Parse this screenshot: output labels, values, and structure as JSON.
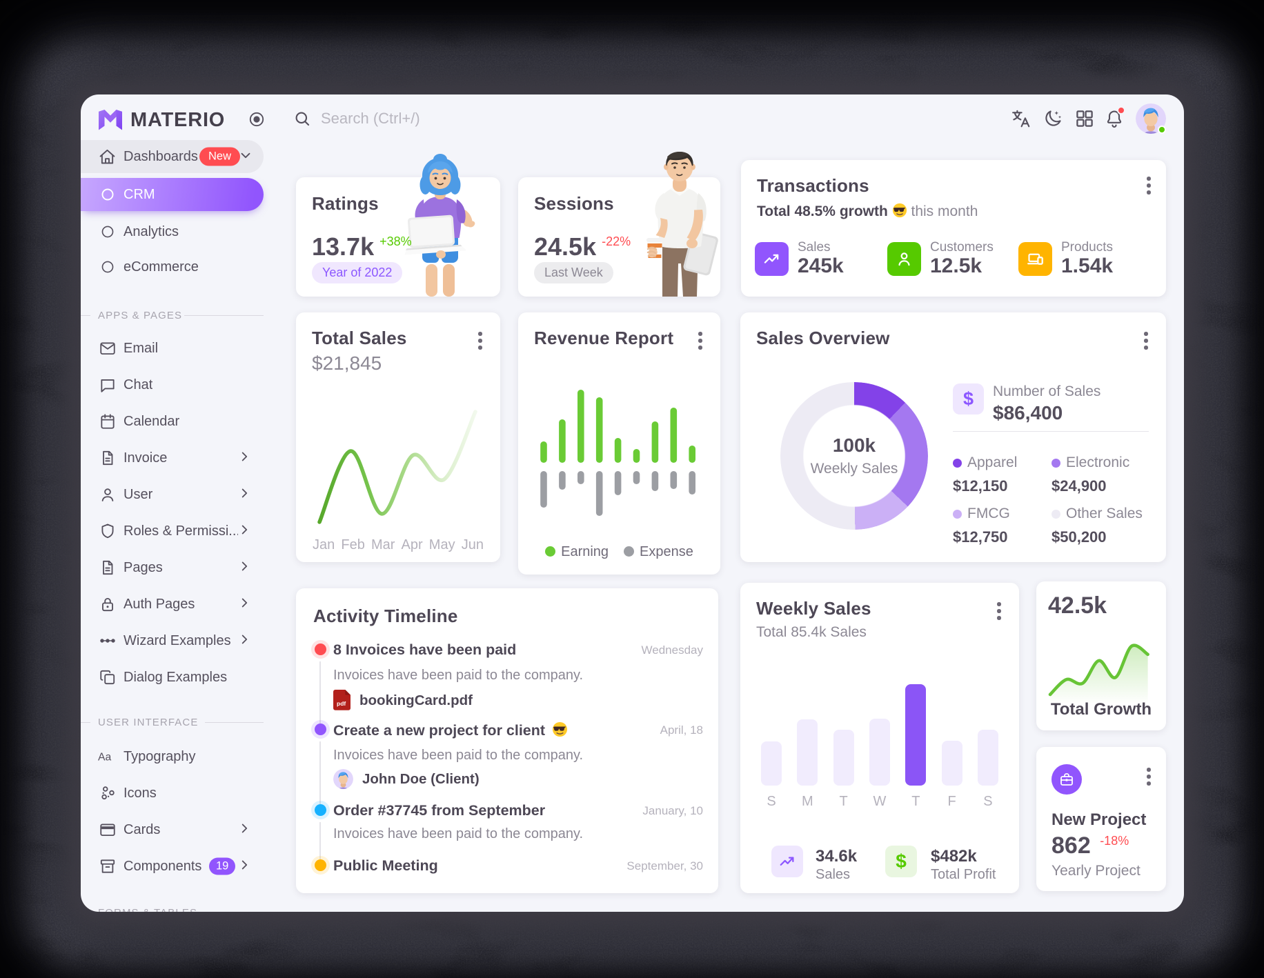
{
  "brand": {
    "name": "MATERIO"
  },
  "header": {
    "search_placeholder": "Search (Ctrl+/)"
  },
  "sidebar": {
    "dashboards": {
      "label": "Dashboards",
      "badge": "New"
    },
    "children": [
      {
        "label": "CRM"
      },
      {
        "label": "Analytics"
      },
      {
        "label": "eCommerce"
      }
    ],
    "section_apps": "APPS & PAGES",
    "apps": [
      {
        "label": "Email"
      },
      {
        "label": "Chat"
      },
      {
        "label": "Calendar"
      },
      {
        "label": "Invoice"
      },
      {
        "label": "User"
      },
      {
        "label": "Roles & Permissi..."
      },
      {
        "label": "Pages"
      },
      {
        "label": "Auth Pages"
      },
      {
        "label": "Wizard Examples"
      },
      {
        "label": "Dialog Examples"
      }
    ],
    "section_ui": "USER INTERFACE",
    "ui": [
      {
        "label": "Typography"
      },
      {
        "label": "Icons"
      },
      {
        "label": "Cards"
      },
      {
        "label": "Components",
        "badge": "19"
      }
    ],
    "section_forms": "FORMS & TABLES"
  },
  "ratings": {
    "title": "Ratings",
    "value": "13.7k",
    "delta": "+38%",
    "delta_color": "#56CA00",
    "badge": "Year of 2022",
    "badge_bg": "#F0E7FE",
    "badge_color": "#8C57FF"
  },
  "sessions": {
    "title": "Sessions",
    "value": "24.5k",
    "delta": "-22%",
    "delta_color": "#FF4C51",
    "badge": "Last Week",
    "badge_bg": "#ececee",
    "badge_color": "#8c8894"
  },
  "transactions": {
    "title": "Transactions",
    "growth_bold": "Total 48.5% growth",
    "growth_rest": "this month",
    "stats": [
      {
        "label": "Sales",
        "value": "245k",
        "color": "#9155FD"
      },
      {
        "label": "Customers",
        "value": "12.5k",
        "color": "#56CA00"
      },
      {
        "label": "Products",
        "value": "1.54k",
        "color": "#FFB400"
      }
    ]
  },
  "total_sales": {
    "title": "Total Sales",
    "value": "$21,845"
  },
  "revenue_report": {
    "title": "Revenue Report"
  },
  "sales_overview": {
    "title": "Sales Overview",
    "number_label": "Number of Sales",
    "number_value": "$86,400",
    "center_value": "100k",
    "center_label": "Weekly Sales"
  },
  "activity": {
    "title": "Activity Timeline",
    "items": [
      {
        "title": "8 Invoices have been paid",
        "date": "Wednesday",
        "desc": "Invoices have been paid to the company.",
        "dot": "#FF4C51",
        "halo": "rgba(255,76,81,0.16)",
        "attachment": "bookingCard.pdf"
      },
      {
        "title": "Create a new project for client",
        "emoji": true,
        "date": "April, 18",
        "desc": "Invoices have been paid to the company.",
        "dot": "#9155FD",
        "halo": "rgba(145,85,253,0.16)",
        "person": "John Doe (Client)"
      },
      {
        "title": "Order #37745 from September",
        "date": "January, 10",
        "desc": "Invoices have been paid to the company.",
        "dot": "#16B1FF",
        "halo": "rgba(22,177,255,0.16)"
      },
      {
        "title": "Public Meeting",
        "date": "September, 30",
        "dot": "#FFB400",
        "halo": "rgba(255,180,0,0.16)"
      }
    ]
  },
  "weekly_sales": {
    "title": "Weekly Sales",
    "subtitle": "Total 85.4k Sales",
    "stats": [
      {
        "label": "Sales",
        "value": "34.6k",
        "icon_bg": "#EFE7FE",
        "icon_color": "#8C57FF"
      },
      {
        "label": "Total Profit",
        "value": "$482k",
        "icon_bg": "#E9F6E0",
        "icon_color": "#56CA00"
      }
    ]
  },
  "total_growth": {
    "value": "42.5k",
    "label": "Total Growth"
  },
  "new_project": {
    "title": "New Project",
    "value": "862",
    "delta": "-18%",
    "delta_color": "#FF4C51",
    "sub": "Yearly Project",
    "icon_bg": "#9155FD"
  },
  "chart_data": [
    {
      "id": "total_sales_line",
      "type": "line",
      "title": "Total Sales",
      "x": [
        "Jan",
        "Feb",
        "Mar",
        "Apr",
        "May",
        "Jun"
      ],
      "values": [
        2,
        105,
        14,
        99,
        64,
        162
      ],
      "ylim": [
        0,
        180
      ],
      "grid": false,
      "line_gradient": [
        "#57A82B",
        "#74C24A",
        "#A8D987",
        "#D9EEC9",
        "#F2F9ED"
      ]
    },
    {
      "id": "revenue_report_bars",
      "type": "bar",
      "title": "Revenue Report",
      "categories": [
        1,
        2,
        3,
        4,
        5,
        6,
        7,
        8,
        9
      ],
      "series": [
        {
          "name": "Earning",
          "color": "#6ACB35",
          "values": [
            31,
            63,
            106,
            95,
            36,
            20,
            60,
            80,
            25
          ]
        },
        {
          "name": "Expense",
          "color": "#9C9EA3",
          "values": [
            53,
            27,
            19,
            65,
            35,
            19,
            29,
            26,
            34
          ]
        }
      ],
      "legend_position": "bottom",
      "grid": false
    },
    {
      "id": "sales_overview_donut",
      "type": "pie",
      "title": "Sales Overview",
      "center_value": "100k",
      "center_label": "Weekly Sales",
      "segments": [
        {
          "label": "Apparel",
          "value": 12150,
          "display": "$12,150",
          "color": "#8342E8"
        },
        {
          "label": "Electronic",
          "value": 24900,
          "display": "$24,900",
          "color": "#A478F0"
        },
        {
          "label": "FMCG",
          "value": 12750,
          "display": "$12,750",
          "color": "#CBB0F6"
        },
        {
          "label": "Other Sales",
          "value": 50200,
          "display": "$50,200",
          "color": "#EDEBF4"
        }
      ]
    },
    {
      "id": "weekly_sales_bars",
      "type": "bar",
      "title": "Weekly Sales",
      "categories": [
        "S",
        "M",
        "T",
        "W",
        "T",
        "F",
        "S"
      ],
      "values": [
        64,
        96,
        81,
        97,
        147,
        65,
        81
      ],
      "highlight_index": 4,
      "bar_color": "#F1ECFD",
      "highlight_color": "#8B55F6",
      "grid": false
    },
    {
      "id": "total_growth_spark",
      "type": "area",
      "title": "Total Growth",
      "x": [
        0,
        1,
        2,
        3,
        4,
        5,
        6
      ],
      "values": [
        18,
        42,
        36,
        72,
        45,
        95,
        82
      ],
      "color": "#67C436",
      "grid": false
    }
  ]
}
